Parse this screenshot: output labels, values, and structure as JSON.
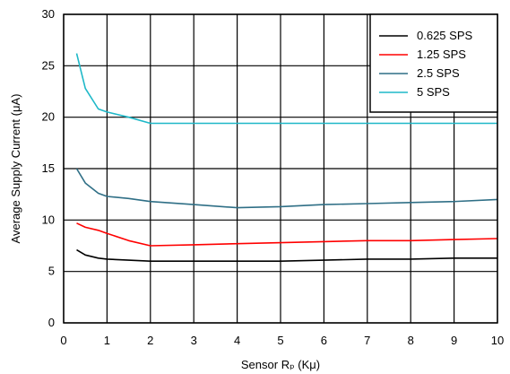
{
  "chart_data": {
    "type": "line",
    "xlabel": "Sensor Rₚ (Kμ)",
    "ylabel": "Average Supply Current (μA)",
    "xlim": [
      0,
      10
    ],
    "ylim": [
      0,
      30
    ],
    "x_ticks": [
      0,
      1,
      2,
      3,
      4,
      5,
      6,
      7,
      8,
      9,
      10
    ],
    "y_ticks": [
      0,
      5,
      10,
      15,
      20,
      25,
      30
    ],
    "grid": true,
    "legend_position": "top-right",
    "series": [
      {
        "name": "0.625 SPS",
        "color": "#000000",
        "x": [
          0.3,
          0.5,
          0.8,
          1,
          1.5,
          2,
          3,
          4,
          5,
          6,
          7,
          8,
          9,
          10
        ],
        "y": [
          7.1,
          6.6,
          6.3,
          6.2,
          6.1,
          6.0,
          6.0,
          6.0,
          6.0,
          6.1,
          6.2,
          6.2,
          6.3,
          6.3
        ]
      },
      {
        "name": "1.25 SPS",
        "color": "#ff0000",
        "x": [
          0.3,
          0.5,
          0.8,
          1,
          1.5,
          2,
          3,
          4,
          5,
          6,
          7,
          8,
          9,
          10
        ],
        "y": [
          9.7,
          9.3,
          9.0,
          8.7,
          8.0,
          7.5,
          7.6,
          7.7,
          7.8,
          7.9,
          8.0,
          8.0,
          8.1,
          8.2
        ]
      },
      {
        "name": "2.5 SPS",
        "color": "#2f6f86",
        "x": [
          0.3,
          0.5,
          0.8,
          1,
          1.5,
          2,
          3,
          4,
          5,
          6,
          7,
          8,
          9,
          10
        ],
        "y": [
          15.0,
          13.6,
          12.6,
          12.3,
          12.1,
          11.8,
          11.5,
          11.2,
          11.3,
          11.5,
          11.6,
          11.7,
          11.8,
          12.0
        ]
      },
      {
        "name": "5 SPS",
        "color": "#1fb8c8",
        "x": [
          0.3,
          0.5,
          0.8,
          1,
          1.5,
          2,
          3,
          4,
          5,
          6,
          7,
          8,
          9,
          10
        ],
        "y": [
          26.2,
          22.8,
          20.8,
          20.5,
          20.0,
          19.4,
          19.4,
          19.4,
          19.4,
          19.4,
          19.4,
          19.4,
          19.4,
          19.4
        ]
      }
    ]
  }
}
